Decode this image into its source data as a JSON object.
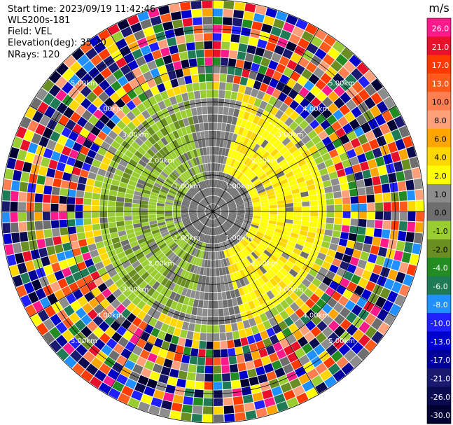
{
  "header": {
    "start_time": "Start time: 2023/09/19 11:42:46",
    "instrument": "WLS200s-181",
    "field": "Field: VEL",
    "elevation": "Elevation(deg): 35.30",
    "nrays": "NRays: 120"
  },
  "chart_data": {
    "type": "heatmap",
    "projection": "polar-ppi",
    "title": "",
    "nrays": 120,
    "range_rings": [
      "1.00km",
      "2.00km",
      "3.00km",
      "4.00km",
      "5.00km"
    ],
    "range_ring_values_km": [
      1,
      2,
      3,
      4,
      5
    ],
    "max_range_km": 5.8,
    "colorbar": {
      "unit": "m/s",
      "ticks": [
        "26.0",
        "21.0",
        "17.0",
        "13.0",
        "10.0",
        "8.0",
        "6.0",
        "4.0",
        "2.0",
        "1.0",
        "0.0",
        "-1.0",
        "-2.0",
        "-4.0",
        "-6.0",
        "-8.0",
        "-10.0",
        "-13.0",
        "-17.0",
        "-21.0",
        "-26.0",
        "-30.0"
      ],
      "colors": [
        "#ff1a8c",
        "#e8102a",
        "#ff3a00",
        "#ff5a1a",
        "#ff7f50",
        "#ffa07a",
        "#ffa500",
        "#ffd700",
        "#ffff00",
        "#8c8c8c",
        "#6e6e6e",
        "#9acd32",
        "#6b8e23",
        "#228b22",
        "#1e7b55",
        "#1e90ff",
        "#2020ff",
        "#0000cd",
        "#000099",
        "#191970",
        "#0a0a50",
        "#000033"
      ]
    },
    "velocity_structure": {
      "inner_pattern": "dipole: positive (yellow, up to +2 m/s) on east, negative (green, down to -2 m/s) on west",
      "outer_pattern": "noisy velocities spanning -30 to +26 m/s beyond ~3 km"
    }
  }
}
